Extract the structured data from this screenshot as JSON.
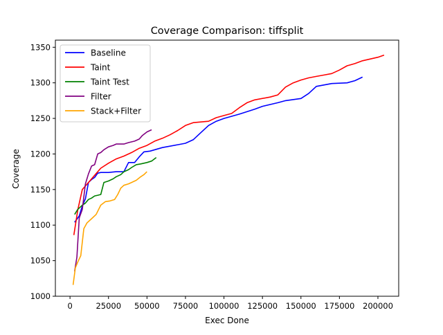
{
  "chart_data": {
    "type": "line",
    "title": "Coverage Comparison: tiffsplit",
    "xlabel": "Exec Done",
    "ylabel": "Coverage",
    "xlim": [
      -9500,
      213500
    ],
    "ylim": [
      1000,
      1360
    ],
    "x_ticks": [
      0,
      25000,
      50000,
      75000,
      100000,
      125000,
      150000,
      175000,
      200000
    ],
    "y_ticks": [
      1000,
      1050,
      1100,
      1150,
      1200,
      1250,
      1300,
      1350
    ],
    "grid": false,
    "legend_position": "top-left",
    "series": [
      {
        "name": "Baseline",
        "color": "#0000ff",
        "x": [
          3000,
          6000,
          8000,
          10000,
          12000,
          14000,
          16000,
          18000,
          20000,
          25000,
          30000,
          35000,
          38000,
          42000,
          45000,
          48000,
          52000,
          60000,
          70000,
          75000,
          80000,
          85000,
          90000,
          95000,
          100000,
          110000,
          120000,
          125000,
          135000,
          140000,
          150000,
          155000,
          160000,
          170000,
          180000,
          185000,
          190000
        ],
        "y": [
          1104,
          1113,
          1127,
          1137,
          1160,
          1164,
          1167,
          1173,
          1174,
          1174,
          1175,
          1175,
          1188,
          1188,
          1196,
          1203,
          1204,
          1209,
          1213,
          1215,
          1220,
          1230,
          1240,
          1246,
          1250,
          1256,
          1263,
          1267,
          1272,
          1275,
          1278,
          1285,
          1295,
          1299,
          1300,
          1303,
          1308
        ]
      },
      {
        "name": "Taint",
        "color": "#ff0000",
        "x": [
          2500,
          5000,
          8000,
          12000,
          16000,
          20000,
          25000,
          30000,
          35000,
          40000,
          45000,
          50000,
          55000,
          60000,
          65000,
          70000,
          75000,
          80000,
          90000,
          95000,
          100000,
          105000,
          110000,
          115000,
          120000,
          130000,
          135000,
          140000,
          145000,
          150000,
          155000,
          160000,
          165000,
          170000,
          175000,
          180000,
          185000,
          190000,
          200000,
          204000
        ],
        "y": [
          1086,
          1121,
          1150,
          1160,
          1170,
          1180,
          1187,
          1193,
          1197,
          1202,
          1208,
          1212,
          1218,
          1222,
          1227,
          1233,
          1240,
          1244,
          1246,
          1251,
          1254,
          1257,
          1265,
          1272,
          1276,
          1280,
          1283,
          1294,
          1300,
          1304,
          1307,
          1309,
          1311,
          1313,
          1318,
          1324,
          1327,
          1331,
          1336,
          1339
        ]
      },
      {
        "name": "Taint Test",
        "color": "#008000",
        "x": [
          3000,
          5000,
          8000,
          10000,
          12000,
          14000,
          16000,
          18000,
          20000,
          22000,
          25000,
          28000,
          30000,
          33000,
          35000,
          38000,
          40000,
          43000,
          46000,
          50000,
          53000,
          56000
        ],
        "y": [
          1115,
          1122,
          1128,
          1131,
          1136,
          1138,
          1141,
          1142,
          1143,
          1160,
          1162,
          1165,
          1168,
          1171,
          1175,
          1178,
          1181,
          1185,
          1186,
          1188,
          1190,
          1195
        ]
      },
      {
        "name": "Filter",
        "color": "#800080",
        "x": [
          3000,
          4500,
          6000,
          8000,
          10000,
          12000,
          14000,
          16000,
          18000,
          20000,
          22000,
          25000,
          28000,
          30000,
          35000,
          38000,
          42000,
          45000,
          47000,
          50000,
          53000
        ],
        "y": [
          1035,
          1055,
          1110,
          1122,
          1158,
          1172,
          1183,
          1185,
          1200,
          1202,
          1206,
          1210,
          1212,
          1214,
          1214,
          1216,
          1218,
          1221,
          1226,
          1231,
          1234
        ]
      },
      {
        "name": "Stack+Filter",
        "color": "#ffa500",
        "x": [
          2000,
          3500,
          5000,
          7000,
          9000,
          11000,
          14000,
          17000,
          20000,
          23000,
          26000,
          29000,
          31000,
          33000,
          35000,
          38000,
          40000,
          43000,
          46000,
          48000,
          50000
        ],
        "y": [
          1016,
          1040,
          1048,
          1057,
          1095,
          1103,
          1109,
          1115,
          1128,
          1133,
          1134,
          1136,
          1143,
          1152,
          1156,
          1158,
          1160,
          1163,
          1168,
          1171,
          1175
        ]
      }
    ]
  }
}
